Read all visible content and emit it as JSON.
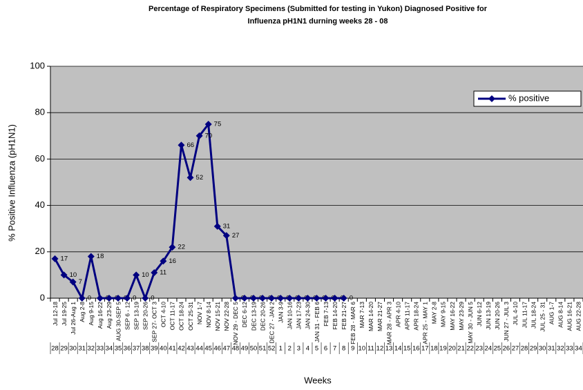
{
  "chart_data": {
    "type": "line",
    "title": [
      "Percentage of Respiratory Specimens (Submitted for testing in Yukon) Diagnosed Positive for",
      "Influenza pH1N1 durning weeks 28 - 08"
    ],
    "y_axis_label": "% Positive Influenza  (pH1N1)",
    "x_axis_label": "Weeks",
    "categories": [
      "Jul 12-18",
      "Jul 19-25",
      "Jul 26-Aug 1",
      "Aug 2-8",
      "Aug 9-15",
      "Aug 16-22",
      "Aug 23-29",
      "AUG 30-SEP 5",
      "SEP 6 - 12",
      "SEP 13-19",
      "SEP 20-26",
      "SEP 27- OCT 3",
      "OCT 4-10",
      "OCT 11-17",
      "OCT 18-24",
      "OCT 25-31",
      "NOV 1-7",
      "NOV 8-14",
      "NOV 15-21",
      "NOV 22-28",
      "NOV 29 - DEC 5",
      "DEC 6-12",
      "DEC 13-19",
      "DEC 20-26",
      "DEC 27 - JAN 2",
      "JAN 3-9",
      "JAN 10-16",
      "JAN 17-23",
      "JAN 24-30",
      "JAN 31 - FEB 6",
      "FEB 7-13",
      "FEB 14-20",
      "FEB 21-27",
      "FEB 28 - MAR 6",
      "MAR 7-13",
      "MAR 14-20",
      "MAR 21-27",
      "MAR 28 - APR 3",
      "APR 4-10",
      "APR 11-17",
      "APR 18-24",
      "APR 25 - MAY 1",
      "MAY 2-8",
      "MAY 9-15",
      "MAY 16-22",
      "MAY 23-29",
      "MAY 30 - JUN 5",
      "JUN 6-12",
      "JUN 13-19",
      "JUN 20-26",
      "JUN 27 - JUL 3",
      "JUL 4-10",
      "JUL 11-17",
      "JUL 18-24",
      "JUL 25 - 31",
      "AUG 1-7",
      "AUG 8-14",
      "AUG 16-21",
      "AUG 22-28"
    ],
    "week_numbers": [
      28,
      29,
      30,
      31,
      32,
      33,
      34,
      35,
      36,
      37,
      38,
      39,
      40,
      41,
      42,
      43,
      44,
      45,
      46,
      47,
      48,
      49,
      50,
      51,
      52,
      1,
      2,
      3,
      4,
      5,
      6,
      7,
      8,
      9,
      10,
      11,
      12,
      13,
      14,
      15,
      16,
      17,
      18,
      19,
      20,
      21,
      22,
      23,
      24,
      25,
      26,
      27,
      28,
      29,
      30,
      31,
      32,
      33,
      34
    ],
    "series": [
      {
        "name": "% positive",
        "color": "#000080",
        "values": [
          17,
          10,
          7,
          0,
          18,
          0,
          0,
          0,
          0,
          10,
          0,
          11,
          16,
          22,
          66,
          52,
          70,
          75,
          31,
          27,
          0,
          0,
          0,
          0,
          0,
          0,
          0,
          0,
          0,
          0,
          0,
          0,
          0,
          null,
          null,
          null,
          null,
          null,
          null,
          null,
          null,
          null,
          null,
          null,
          null,
          null,
          null,
          null,
          null,
          null,
          null,
          null,
          null,
          null,
          null,
          null,
          null,
          null,
          null
        ]
      }
    ],
    "ylim": [
      0,
      100
    ],
    "yticks": [
      0,
      20,
      40,
      60,
      80,
      100
    ],
    "grid": true,
    "legend": "upper right"
  }
}
